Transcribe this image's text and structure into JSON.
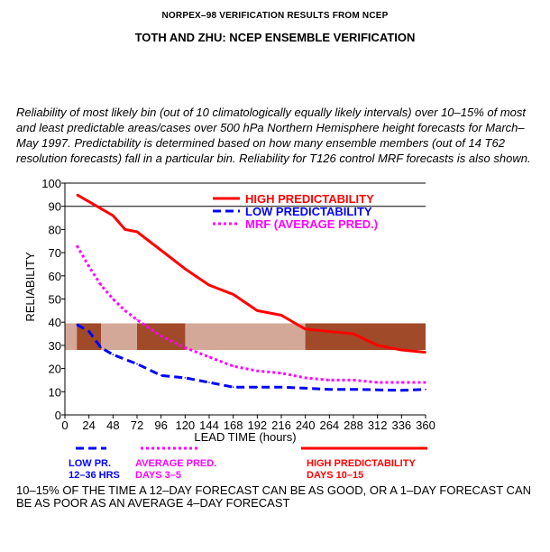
{
  "header": {
    "title_small": "NORPEX–98 VERIFICATION RESULTS FROM NCEP",
    "title_main": "TOTH AND ZHU: NCEP ENSEMBLE VERIFICATION"
  },
  "description": "Reliability of most likely bin (out of 10 climatologically equally likely intervals) over 10–15% of most and least predictable areas/cases over 500 hPa Northern Hemisphere height forecasts for March–May 1997. Predictability is determined based on how many ensemble members (out of 14 T62 resolution forecasts) fall in a particular bin. Reliability for T126 control MRF forecasts is also shown.",
  "footer": "10–15% OF THE TIME A 12–DAY FORECAST CAN BE AS GOOD, OR A 1–DAY FORECAST CAN BE AS POOR AS AN AVERAGE 4–DAY FORECAST",
  "colors": {
    "high": "#ff0000",
    "low": "#0000ff",
    "mrf": "#ff00ff",
    "band": "#d4a898",
    "band_dark": "#a04a2a"
  },
  "chart_data": {
    "type": "line",
    "title": "",
    "xlabel": "LEAD TIME (hours)",
    "ylabel": "RELIABILITY",
    "xlim": [
      0,
      360
    ],
    "ylim": [
      0,
      100
    ],
    "x_ticks": [
      0,
      24,
      48,
      72,
      96,
      120,
      144,
      168,
      192,
      216,
      240,
      264,
      288,
      312,
      336,
      360
    ],
    "y_ticks": [
      0,
      10,
      20,
      30,
      40,
      50,
      60,
      70,
      80,
      90,
      100
    ],
    "grid": "horizontal line at 90 only",
    "legend_position": "top-right",
    "series": [
      {
        "name": "HIGH PREDICTABILITY",
        "style": "solid",
        "color": "#ff0000",
        "x": [
          12,
          24,
          36,
          48,
          60,
          72,
          96,
          120,
          144,
          168,
          192,
          216,
          240,
          264,
          288,
          312,
          336,
          360
        ],
        "y": [
          95,
          92,
          89,
          86,
          80,
          79,
          71,
          63,
          56,
          52,
          45,
          43,
          37,
          36,
          35,
          30,
          28,
          27
        ]
      },
      {
        "name": "LOW PREDICTABILITY",
        "style": "dashed",
        "color": "#0000ff",
        "x": [
          12,
          24,
          36,
          48,
          72,
          96,
          120,
          144,
          168,
          192,
          216,
          240,
          264,
          288,
          312,
          336,
          360
        ],
        "y": [
          39,
          36,
          29,
          26,
          22,
          17,
          16,
          14,
          12,
          12,
          12,
          11.5,
          11,
          11,
          10.8,
          10.6,
          11
        ]
      },
      {
        "name": "MRF  (AVERAGE PRED.)",
        "style": "dotted",
        "color": "#ff00ff",
        "x": [
          12,
          24,
          36,
          48,
          60,
          72,
          96,
          120,
          144,
          168,
          192,
          216,
          240,
          264,
          288,
          312,
          336,
          360
        ],
        "y": [
          73,
          64,
          56,
          50,
          45,
          41,
          34,
          29,
          25,
          21,
          19,
          18,
          16,
          15,
          15,
          14,
          14,
          14
        ]
      }
    ],
    "band": {
      "y_range": [
        28,
        39.5
      ],
      "dark_x_ranges": [
        [
          12,
          36
        ],
        [
          72,
          120
        ],
        [
          240,
          360
        ]
      ]
    },
    "bottom_legend": [
      {
        "style": "dashed",
        "color": "#0000ff",
        "line1": "LOW PR.",
        "line2": "12–36 HRS"
      },
      {
        "style": "dotted",
        "color": "#ff00ff",
        "line1": "AVERAGE PRED.",
        "line2": "DAYS 3–5"
      },
      {
        "style": "solid",
        "color": "#ff0000",
        "line1": "HIGH PREDICTABILITY",
        "line2": "DAYS 10–15"
      }
    ]
  }
}
